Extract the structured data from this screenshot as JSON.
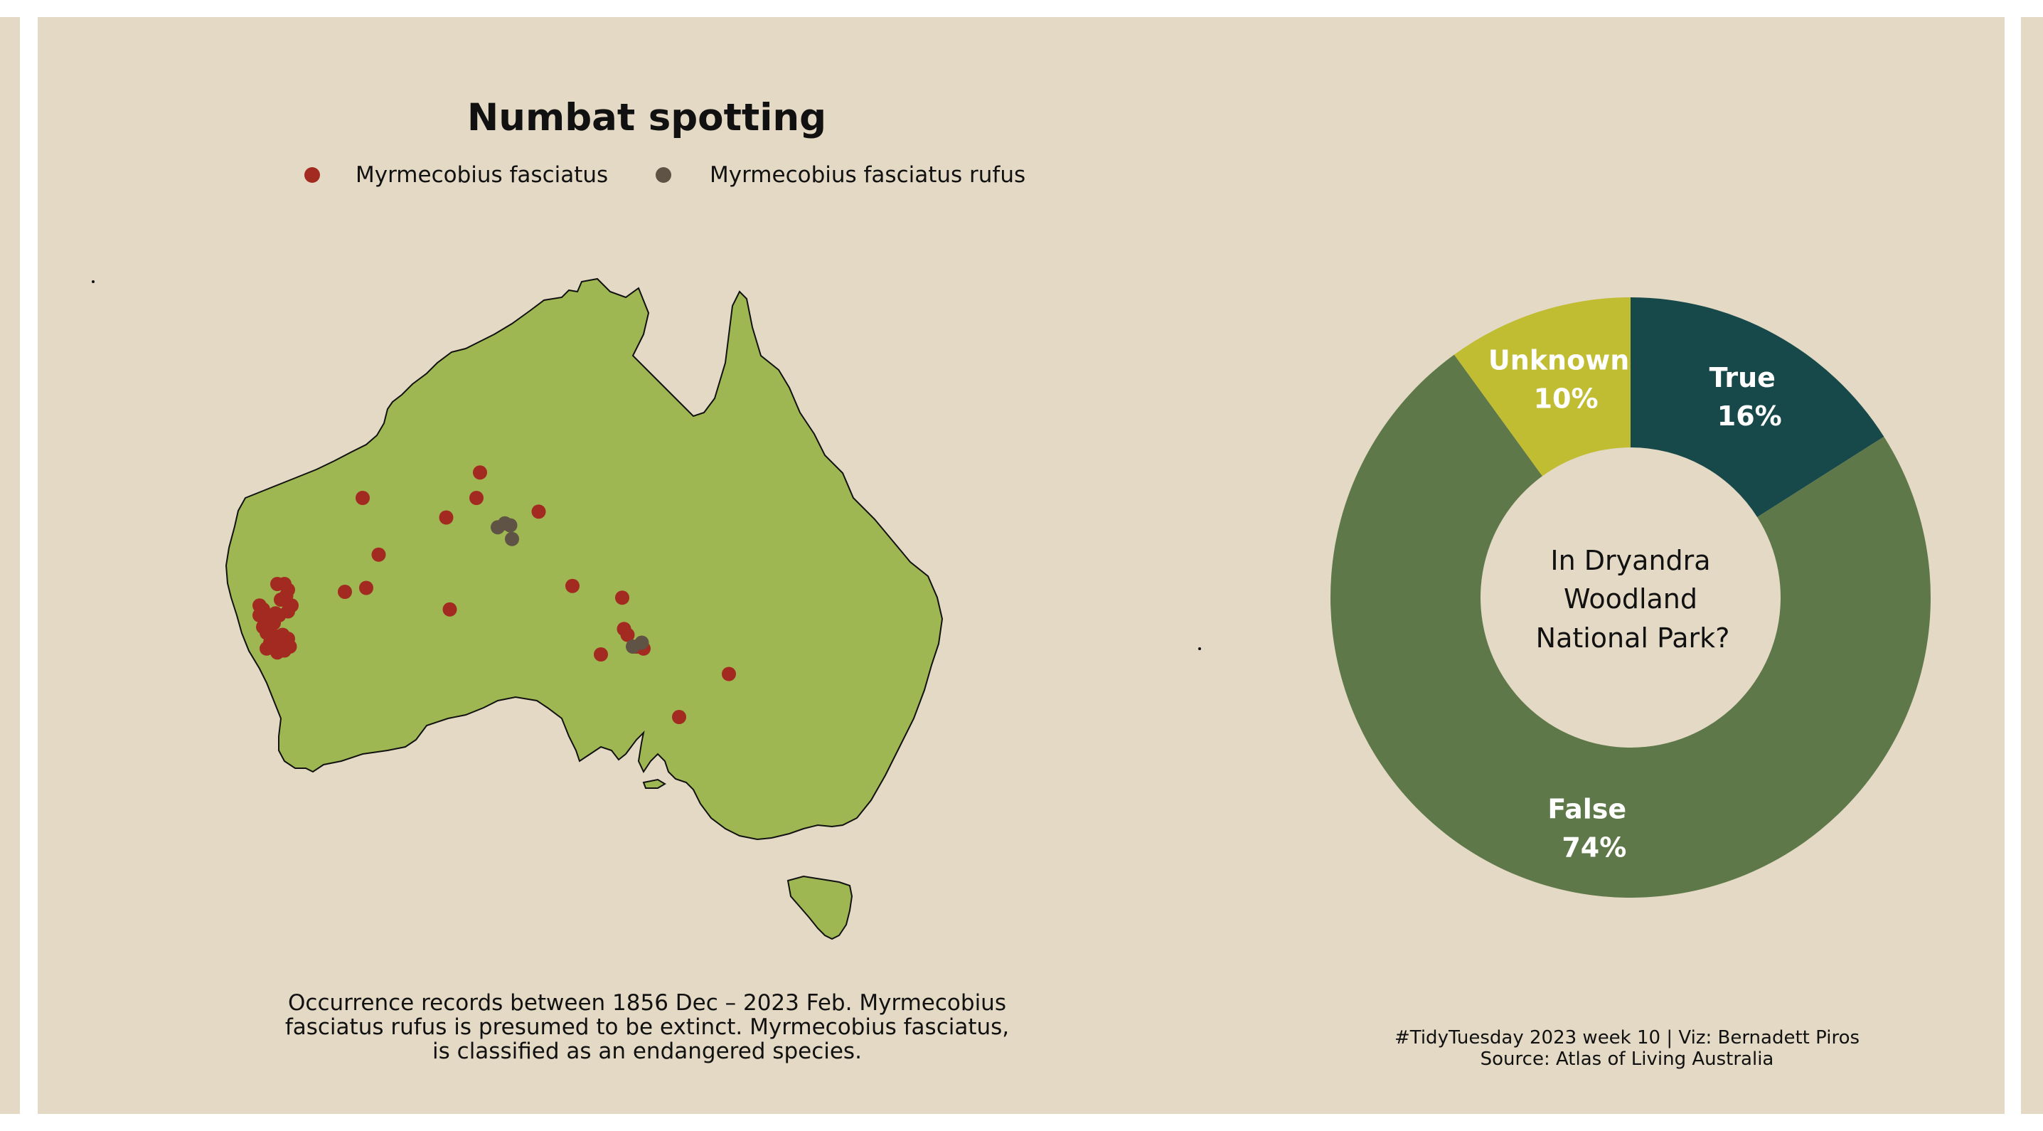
{
  "title": "Numbat spotting",
  "legend": [
    {
      "label": "Myrmecobius fasciatus",
      "color": "#a32a20"
    },
    {
      "label": "Myrmecobius fasciatus rufus",
      "color": "#5e5344"
    }
  ],
  "caption_lines": [
    "Occurrence records between 1856 Dec – 2023 Feb. Myrmecobius",
    "fasciatus rufus is presumed to be extinct. Myrmecobius fasciatus,",
    "is classified as an endangered species."
  ],
  "credit_lines": [
    "#TidyTuesday 2023 week 10 | Viz: Bernadett Piros",
    "Source: Atlas of Living Australia"
  ],
  "colors": {
    "background": "#e3d9c4",
    "land": "#9eb752",
    "fasciatus": "#a32a20",
    "rufus": "#5e5344",
    "true": "#17494a",
    "false": "#5f7849",
    "unknown": "#c0bd33"
  },
  "chart_data": [
    {
      "type": "scatter",
      "title": "Numbat spotting",
      "series": [
        {
          "name": "Myrmecobius fasciatus",
          "points": [
            {
              "lon": 121.4,
              "lat": -22.0
            },
            {
              "lon": 128.0,
              "lat": -20.7
            },
            {
              "lon": 127.8,
              "lat": -22.0
            },
            {
              "lon": 126.1,
              "lat": -23.0
            },
            {
              "lon": 131.3,
              "lat": -22.7
            },
            {
              "lon": 122.3,
              "lat": -24.9
            },
            {
              "lon": 121.6,
              "lat": -26.6
            },
            {
              "lon": 120.4,
              "lat": -26.8
            },
            {
              "lon": 126.3,
              "lat": -27.7
            },
            {
              "lon": 133.2,
              "lat": -26.5
            },
            {
              "lon": 136.0,
              "lat": -27.1
            },
            {
              "lon": 136.1,
              "lat": -28.7
            },
            {
              "lon": 136.3,
              "lat": -29.0
            },
            {
              "lon": 136.8,
              "lat": -29.6
            },
            {
              "lon": 137.2,
              "lat": -29.7
            },
            {
              "lon": 134.8,
              "lat": -30.0
            },
            {
              "lon": 139.2,
              "lat": -33.2
            },
            {
              "lon": 142.0,
              "lat": -31.0
            },
            {
              "lon": 116.6,
              "lat": -26.4
            },
            {
              "lon": 117.0,
              "lat": -26.4
            },
            {
              "lon": 117.2,
              "lat": -26.7
            },
            {
              "lon": 117.1,
              "lat": -27.0
            },
            {
              "lon": 116.8,
              "lat": -27.2
            },
            {
              "lon": 117.4,
              "lat": -27.5
            },
            {
              "lon": 117.2,
              "lat": -27.8
            },
            {
              "lon": 115.6,
              "lat": -27.5
            },
            {
              "lon": 115.8,
              "lat": -27.7
            },
            {
              "lon": 115.6,
              "lat": -28.0
            },
            {
              "lon": 115.9,
              "lat": -28.2
            },
            {
              "lon": 116.2,
              "lat": -28.1
            },
            {
              "lon": 116.5,
              "lat": -27.9
            },
            {
              "lon": 116.7,
              "lat": -28.0
            },
            {
              "lon": 116.4,
              "lat": -28.4
            },
            {
              "lon": 116.1,
              "lat": -28.5
            },
            {
              "lon": 115.8,
              "lat": -28.6
            },
            {
              "lon": 116.0,
              "lat": -28.9
            },
            {
              "lon": 116.3,
              "lat": -29.0
            },
            {
              "lon": 116.6,
              "lat": -29.1
            },
            {
              "lon": 116.9,
              "lat": -29.0
            },
            {
              "lon": 117.2,
              "lat": -29.2
            },
            {
              "lon": 116.8,
              "lat": -29.5
            },
            {
              "lon": 116.5,
              "lat": -29.6
            },
            {
              "lon": 116.2,
              "lat": -29.4
            },
            {
              "lon": 116.0,
              "lat": -29.7
            },
            {
              "lon": 116.6,
              "lat": -29.9
            },
            {
              "lon": 117.0,
              "lat": -29.8
            },
            {
              "lon": 117.3,
              "lat": -29.6
            }
          ]
        },
        {
          "name": "Myrmecobius fasciatus rufus",
          "points": [
            {
              "lon": 129.0,
              "lat": -23.5
            },
            {
              "lon": 129.4,
              "lat": -23.3
            },
            {
              "lon": 129.7,
              "lat": -23.4
            },
            {
              "lon": 129.8,
              "lat": -24.1
            },
            {
              "lon": 136.6,
              "lat": -29.6
            },
            {
              "lon": 137.1,
              "lat": -29.4
            }
          ]
        }
      ],
      "xlim": [
        112,
        155
      ],
      "ylim": [
        -44,
        -10
      ]
    },
    {
      "type": "pie",
      "title": "In Dryandra Woodland National Park?",
      "center_text_lines": [
        "In Dryandra",
        "Woodland",
        "National Park?"
      ],
      "slices": [
        {
          "label": "True",
          "value": 16,
          "percent_label": "16%"
        },
        {
          "label": "False",
          "value": 74,
          "percent_label": "74%"
        },
        {
          "label": "Unknown",
          "value": 10,
          "percent_label": "10%"
        }
      ]
    }
  ]
}
